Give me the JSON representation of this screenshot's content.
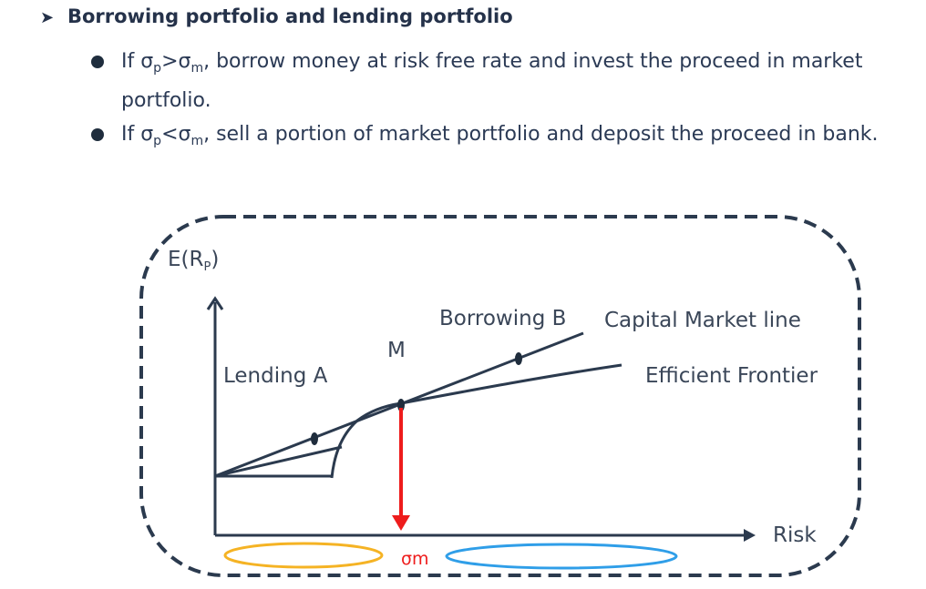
{
  "heading": {
    "arrow": "➤",
    "text": "Borrowing portfolio and lending portfolio"
  },
  "bullets": [
    {
      "pre": "If σ",
      "sub1": "p",
      "mid": ">σ",
      "sub2": "m",
      "post": ", borrow money at risk free rate and invest the proceed in market portfolio."
    },
    {
      "pre": "If σ",
      "sub1": "p",
      "mid": "<σ",
      "sub2": "m",
      "post": ", sell a portion of market portfolio and deposit the proceed in bank."
    }
  ],
  "diagram": {
    "y_axis_label": "E(R",
    "y_axis_sub": "P",
    "y_axis_close": ")",
    "x_axis_label": "Risk",
    "lending_label": "Lending  A",
    "borrowing_label": "Borrowing  B",
    "m_label": "M",
    "cml_label": "Capital Market line",
    "frontier_label": "Efficient Frontier",
    "sigma_m_label": "σm",
    "colors": {
      "lines": "#2b3a4e",
      "sigma_arrow": "#ee1c1c",
      "lending_ellipse": "#f5b324",
      "borrowing_ellipse": "#2f9ee8"
    }
  }
}
